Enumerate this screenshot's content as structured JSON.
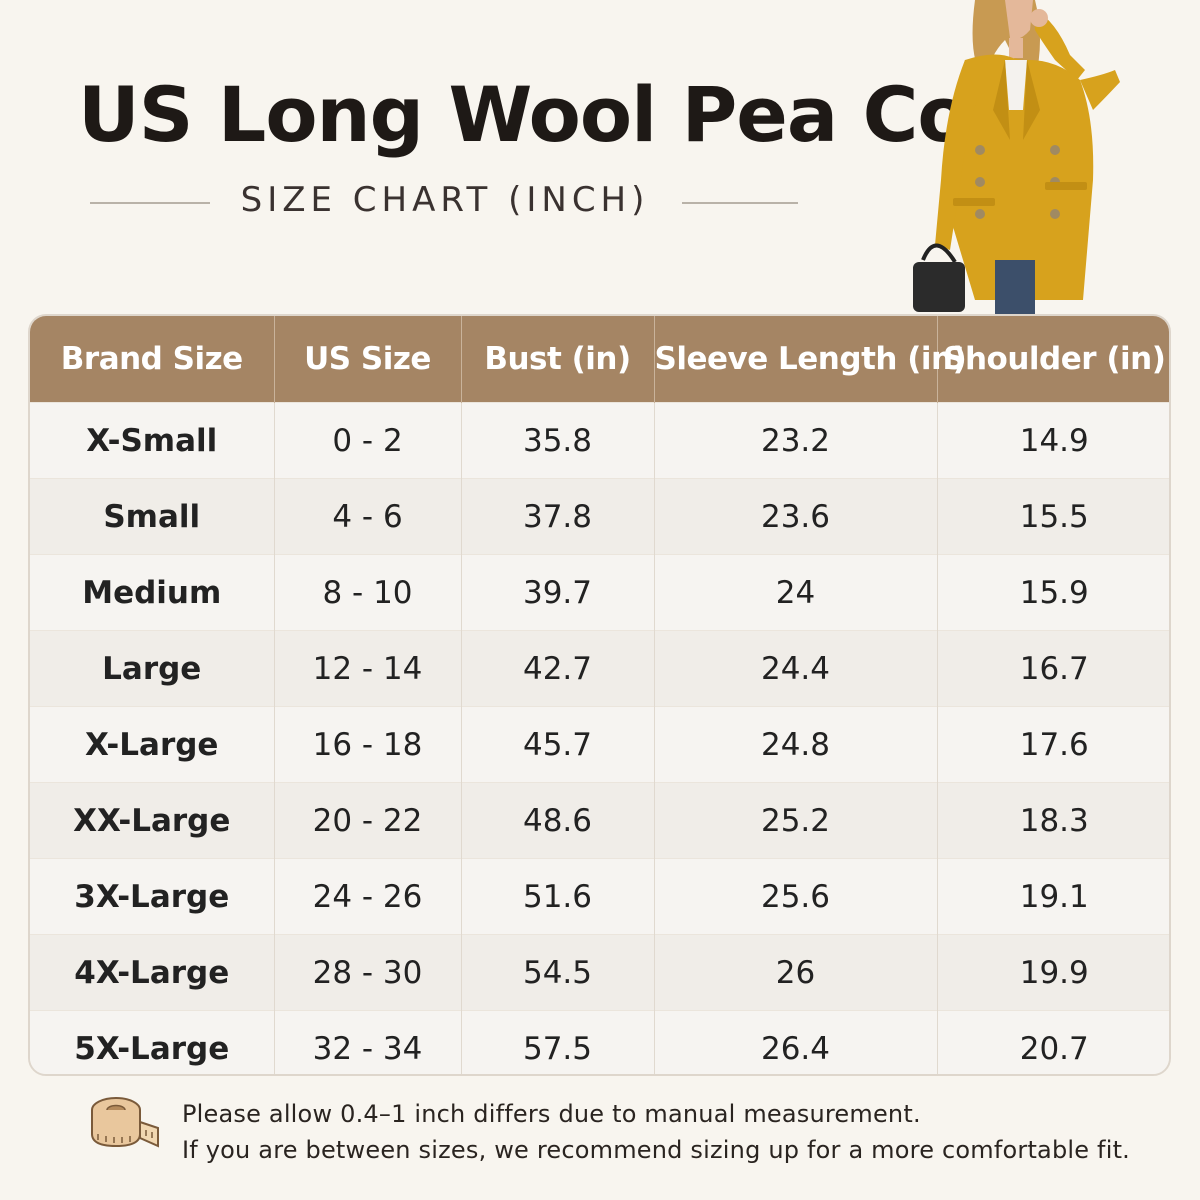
{
  "header": {
    "title": "US Long Wool Pea Coat",
    "subtitle": "SIZE CHART (INCH)"
  },
  "table": {
    "columns": [
      "Brand Size",
      "US Size",
      "Bust (in)",
      "Sleeve Length (in)",
      "Shoulder (in)"
    ],
    "rows": [
      [
        "X-Small",
        "0 - 2",
        "35.8",
        "23.2",
        "14.9"
      ],
      [
        "Small",
        "4 - 6",
        "37.8",
        "23.6",
        "15.5"
      ],
      [
        "Medium",
        "8 - 10",
        "39.7",
        "24",
        "15.9"
      ],
      [
        "Large",
        "12 - 14",
        "42.7",
        "24.4",
        "16.7"
      ],
      [
        "X-Large",
        "16 - 18",
        "45.7",
        "24.8",
        "17.6"
      ],
      [
        "XX-Large",
        "20 - 22",
        "48.6",
        "25.2",
        "18.3"
      ],
      [
        "3X-Large",
        "24 - 26",
        "51.6",
        "25.6",
        "19.1"
      ],
      [
        "4X-Large",
        "28 - 30",
        "54.5",
        "26",
        "19.9"
      ],
      [
        "5X-Large",
        "32 - 34",
        "57.5",
        "26.4",
        "20.7"
      ]
    ]
  },
  "note": {
    "line1": "Please allow 0.4–1 inch differs due to manual measurement.",
    "line2": "If you are between sizes, we recommend sizing up for a more comfortable fit.",
    "icon": "measuring-tape-icon"
  },
  "colors": {
    "header_bg": "#a58564",
    "coat": "#d7a21d",
    "background": "#f8f5ef"
  }
}
